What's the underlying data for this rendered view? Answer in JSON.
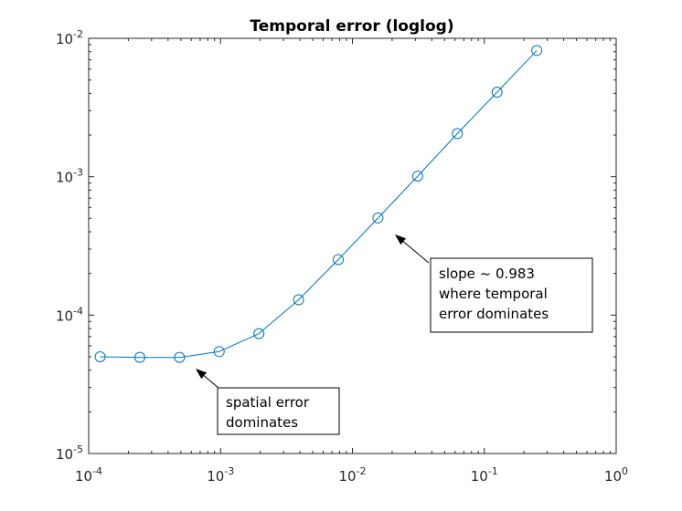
{
  "chart_data": {
    "type": "line",
    "title": "Temporal error (loglog)",
    "xscale": "log",
    "yscale": "log",
    "xlim": [
      0.0001,
      1
    ],
    "ylim": [
      1e-05,
      0.01
    ],
    "x_ticks": [
      {
        "base": "10",
        "exp": "-4"
      },
      {
        "base": "10",
        "exp": "-3"
      },
      {
        "base": "10",
        "exp": "-2"
      },
      {
        "base": "10",
        "exp": "-1"
      },
      {
        "base": "10",
        "exp": "0"
      }
    ],
    "y_ticks": [
      {
        "base": "10",
        "exp": "-5"
      },
      {
        "base": "10",
        "exp": "-4"
      },
      {
        "base": "10",
        "exp": "-3"
      },
      {
        "base": "10",
        "exp": "-2"
      }
    ],
    "grid": false,
    "marker": "circle",
    "color": "#0072bd",
    "series": [
      {
        "x": [
          0.00012207,
          0.00024414,
          0.00048828,
          0.00097656,
          0.0019531,
          0.0039063,
          0.0078125,
          0.015625,
          0.03125,
          0.0625,
          0.125,
          0.25
        ],
        "y": [
          5e-05,
          4.95e-05,
          4.95e-05,
          5.45e-05,
          7.35e-05,
          0.000129,
          0.000252,
          0.000503,
          0.00101,
          0.00205,
          0.00408,
          0.00817
        ]
      }
    ],
    "annotations": [
      {
        "lines": [
          "slope ~ 0.983",
          "where temporal",
          "error dominates"
        ]
      },
      {
        "lines": [
          "spatial error",
          "dominates"
        ]
      }
    ]
  }
}
